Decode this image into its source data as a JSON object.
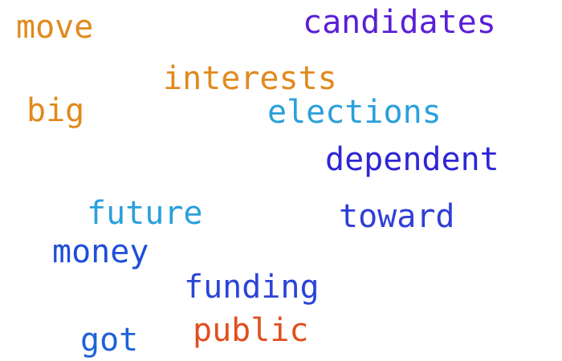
{
  "words": [
    {
      "id": "w-move",
      "text": "move",
      "color": "#e08a1e"
    },
    {
      "id": "w-candidates",
      "text": "candidates",
      "color": "#5a1fd6"
    },
    {
      "id": "w-interests",
      "text": "interests",
      "color": "#e08a1e"
    },
    {
      "id": "w-big",
      "text": "big",
      "color": "#e08a1e"
    },
    {
      "id": "w-elections",
      "text": "elections",
      "color": "#2aa0db"
    },
    {
      "id": "w-dependent",
      "text": "dependent",
      "color": "#2e25d6"
    },
    {
      "id": "w-future",
      "text": "future",
      "color": "#2aa0db"
    },
    {
      "id": "w-toward",
      "text": "toward",
      "color": "#2f3fd6"
    },
    {
      "id": "w-money",
      "text": "money",
      "color": "#1f4fd8"
    },
    {
      "id": "w-funding",
      "text": "funding",
      "color": "#2b44d8"
    },
    {
      "id": "w-public",
      "text": "public",
      "color": "#e0501e"
    },
    {
      "id": "w-got",
      "text": "got",
      "color": "#1f62d8"
    }
  ]
}
